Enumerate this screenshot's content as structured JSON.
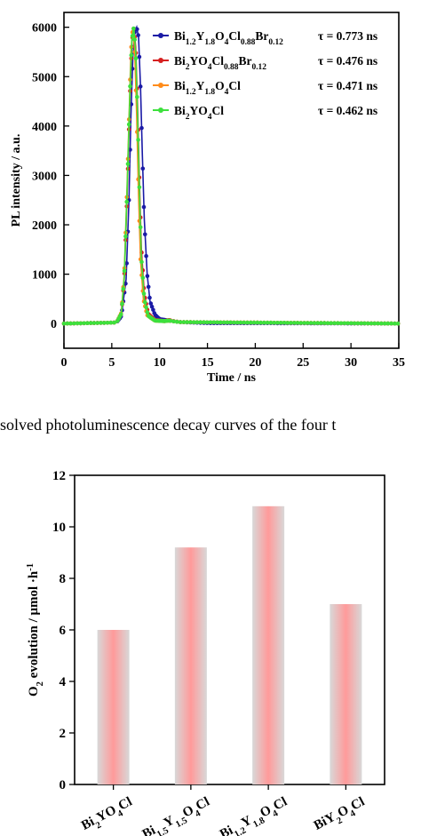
{
  "caption": "esolved photoluminescence decay curves of the four t",
  "chart_data": [
    {
      "type": "scatter",
      "title": "",
      "xlabel": "Time / ns",
      "ylabel": "PL intensity / a.u.",
      "xlim": [
        0,
        35
      ],
      "ylim": [
        -500,
        6300
      ],
      "x_ticks": [
        0,
        5,
        10,
        15,
        20,
        25,
        30,
        35
      ],
      "y_ticks": [
        0,
        1000,
        2000,
        3000,
        4000,
        5000,
        6000
      ],
      "grid": false,
      "legend_position": "top-right",
      "series": [
        {
          "name": {
            "base": "Bi",
            "sub1": "1.2",
            "mid1": "Y",
            "sub2": "1.8",
            "mid2": "O",
            "sub3": "4",
            "mid3": "Cl",
            "sub4": "0.88",
            "mid4": "Br",
            "sub5": "0.12"
          },
          "tau": "τ = 0.773 ns",
          "color": "#1a1aa6",
          "peak_x": 7.6,
          "peak_y": 6000,
          "x": [
            0,
            5.5,
            6.0,
            6.5,
            6.8,
            7.0,
            7.2,
            7.4,
            7.6,
            7.8,
            8.0,
            8.2,
            8.4,
            8.7,
            9.0,
            9.5,
            10.0,
            11.0,
            12.0,
            15.0,
            35.0
          ],
          "y": [
            0,
            20,
            150,
            900,
            2500,
            4200,
            5400,
            5900,
            6000,
            5800,
            4800,
            3400,
            2100,
            1000,
            450,
            180,
            90,
            60,
            30,
            10,
            0
          ]
        },
        {
          "name": {
            "base": "Bi",
            "sub1": "2",
            "mid1": "YO",
            "sub2": "4",
            "mid2": "Cl",
            "sub3": "0.88",
            "mid3": "Br",
            "sub4": "0.12"
          },
          "tau": "τ = 0.476 ns",
          "color": "#d62020",
          "peak_x": 7.3,
          "peak_y": 6000,
          "x": [
            0,
            5.5,
            6.0,
            6.3,
            6.6,
            6.9,
            7.1,
            7.3,
            7.5,
            7.7,
            7.9,
            8.1,
            8.4,
            8.8,
            9.5,
            10.5,
            11.0,
            12.0,
            35.0
          ],
          "y": [
            0,
            20,
            200,
            900,
            2600,
            4600,
            5700,
            6000,
            5600,
            4400,
            2800,
            1500,
            600,
            200,
            70,
            50,
            70,
            30,
            0
          ]
        },
        {
          "name": {
            "base": "Bi",
            "sub1": "1.2",
            "mid1": "Y",
            "sub2": "1.8",
            "mid2": "O",
            "sub3": "4",
            "mid3": "Cl"
          },
          "tau": "τ = 0.471 ns",
          "color": "#ff8c1a",
          "peak_x": 7.2,
          "peak_y": 6000,
          "x": [
            0,
            5.5,
            6.0,
            6.3,
            6.6,
            6.9,
            7.0,
            7.2,
            7.4,
            7.6,
            7.8,
            8.0,
            8.3,
            8.7,
            9.5,
            10.5,
            11.0,
            12.0,
            35.0
          ],
          "y": [
            0,
            20,
            220,
            1000,
            2800,
            4800,
            5500,
            6000,
            5500,
            4200,
            2600,
            1300,
            500,
            170,
            60,
            50,
            60,
            30,
            0
          ]
        },
        {
          "name": {
            "base": "Bi",
            "sub1": "2",
            "mid1": "YO",
            "sub2": "4",
            "mid2": "Cl"
          },
          "tau": "τ = 0.462 ns",
          "color": "#3de03d",
          "peak_x": 7.3,
          "peak_y": 6000,
          "x": [
            0,
            5.5,
            6.0,
            6.3,
            6.6,
            6.9,
            7.1,
            7.3,
            7.5,
            7.7,
            7.9,
            8.1,
            8.4,
            8.8,
            9.5,
            10.5,
            11.0,
            12.0,
            35.0
          ],
          "y": [
            0,
            20,
            200,
            950,
            2700,
            4700,
            5750,
            6000,
            5500,
            4200,
            2600,
            1300,
            500,
            160,
            60,
            50,
            60,
            30,
            0
          ]
        }
      ]
    },
    {
      "type": "bar",
      "title": "",
      "xlabel": "",
      "ylabel": {
        "base": "O",
        "sub": "2",
        "rest": " evolution / μmol ·h",
        "sup": "-1"
      },
      "ylim": [
        0,
        12
      ],
      "y_ticks": [
        0,
        2,
        4,
        6,
        8,
        10,
        12
      ],
      "grid": false,
      "categories": [
        {
          "parts": [
            [
              "Bi",
              ""
            ],
            [
              "2",
              "sub"
            ],
            [
              "YO",
              ""
            ],
            [
              "4",
              "sub"
            ],
            [
              "Cl",
              ""
            ]
          ]
        },
        {
          "parts": [
            [
              "Bi",
              ""
            ],
            [
              "1.5",
              "sub"
            ],
            [
              "Y",
              ""
            ],
            [
              "1.5",
              "sub"
            ],
            [
              "O",
              ""
            ],
            [
              "4",
              "sub"
            ],
            [
              "Cl",
              ""
            ]
          ]
        },
        {
          "parts": [
            [
              "Bi",
              ""
            ],
            [
              "1.2",
              "sub"
            ],
            [
              "Y",
              ""
            ],
            [
              "1.8",
              "sub"
            ],
            [
              "O",
              ""
            ],
            [
              "4",
              "sub"
            ],
            [
              "Cl",
              ""
            ]
          ]
        },
        {
          "parts": [
            [
              "BiY",
              ""
            ],
            [
              "2",
              "sub"
            ],
            [
              "O",
              ""
            ],
            [
              "4",
              "sub"
            ],
            [
              "Cl",
              ""
            ]
          ]
        }
      ],
      "values": [
        6.0,
        9.2,
        10.8,
        7.0
      ],
      "bar_colors": {
        "edge": "#d8d8d8",
        "center": "#ff9a9a"
      }
    }
  ]
}
